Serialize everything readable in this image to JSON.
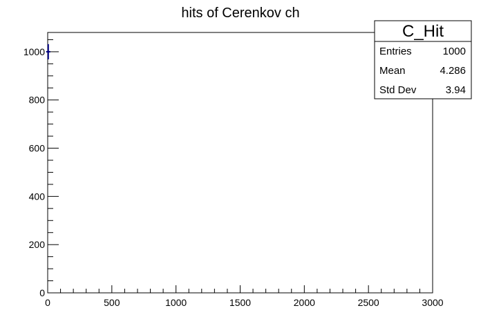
{
  "chart_data": {
    "type": "histogram",
    "title": "hits of Cerenkov ch",
    "xlabel": "",
    "ylabel": "",
    "xlim": [
      0,
      3000
    ],
    "ylim": [
      0,
      1080
    ],
    "x_ticks": [
      0,
      500,
      1000,
      1500,
      2000,
      2500,
      3000
    ],
    "y_ticks": [
      0,
      200,
      400,
      600,
      800,
      1000
    ],
    "series": [
      {
        "points": [
          {
            "x": 4.286,
            "y": 1000,
            "yerr": 31.6
          }
        ],
        "color": "#000080"
      }
    ],
    "stats_box": {
      "name": "C_Hit",
      "rows": [
        {
          "label": "Entries",
          "value": "1000"
        },
        {
          "label": "Mean",
          "value": "4.286"
        },
        {
          "label": "Std Dev",
          "value": "3.94"
        }
      ]
    },
    "grid": false
  }
}
